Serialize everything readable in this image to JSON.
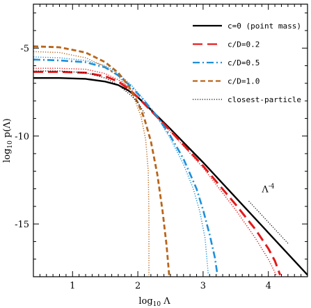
{
  "chart_data": {
    "type": "line",
    "title": "",
    "xlabel_prefix": "log",
    "xlabel_sub": "10",
    "xlabel_rest": " Λ",
    "ylabel_prefix": "log",
    "ylabel_sub": "10",
    "ylabel_rest": " p(Λ)",
    "xlim": [
      0.4,
      4.6
    ],
    "ylim": [
      -18,
      -2.5
    ],
    "x_ticks": [
      1,
      2,
      3,
      4
    ],
    "x_tick_labels": [
      "1",
      "2",
      "3",
      "4"
    ],
    "y_ticks": [
      -5,
      -10,
      -15
    ],
    "y_tick_labels": [
      "-5",
      "-10",
      "-15"
    ],
    "legend_position": "top-right",
    "series": [
      {
        "name": "c=0 (point mass)",
        "color": "#000000",
        "dash": "solid",
        "x": [
          0.4,
          0.8,
          1.2,
          1.5,
          1.7,
          1.85,
          2.0,
          2.2,
          2.5,
          3.0,
          3.5,
          4.0,
          4.6
        ],
        "y": [
          -6.7,
          -6.7,
          -6.75,
          -6.9,
          -7.1,
          -7.4,
          -7.8,
          -8.5,
          -9.6,
          -11.5,
          -13.5,
          -15.5,
          -17.9
        ]
      },
      {
        "name": "c/D=0.2",
        "color": "#e31a1c",
        "dash": "long-dash",
        "x": [
          0.4,
          0.8,
          1.2,
          1.5,
          1.7,
          1.85,
          2.0,
          2.2,
          2.5,
          3.0,
          3.5,
          3.8,
          4.0,
          4.1,
          4.18
        ],
        "y": [
          -6.35,
          -6.35,
          -6.4,
          -6.6,
          -6.9,
          -7.3,
          -7.8,
          -8.55,
          -9.7,
          -11.7,
          -13.9,
          -15.3,
          -16.4,
          -17.1,
          -17.9
        ]
      },
      {
        "name": "c/D=0.5",
        "color": "#1e90d8",
        "dash": "dash-dot",
        "x": [
          0.4,
          0.8,
          1.2,
          1.5,
          1.7,
          1.9,
          2.1,
          2.3,
          2.5,
          2.7,
          2.9,
          3.0,
          3.1,
          3.18,
          3.22
        ],
        "y": [
          -5.65,
          -5.7,
          -5.8,
          -6.1,
          -6.55,
          -7.2,
          -8.0,
          -8.9,
          -10.0,
          -11.3,
          -13.0,
          -14.2,
          -15.6,
          -16.9,
          -17.9
        ]
      },
      {
        "name": "c/D=1.0",
        "color": "#b8651b",
        "dash": "dash",
        "x": [
          0.4,
          0.8,
          1.2,
          1.5,
          1.7,
          1.85,
          2.0,
          2.1,
          2.2,
          2.3,
          2.38,
          2.44,
          2.48
        ],
        "y": [
          -4.9,
          -4.95,
          -5.25,
          -5.8,
          -6.4,
          -7.1,
          -8.1,
          -9.0,
          -10.3,
          -12.2,
          -14.3,
          -16.2,
          -17.9
        ]
      },
      {
        "name": "closest-particle",
        "color": "#000000",
        "dash": "dotted",
        "x": [
          0.4,
          0.8,
          1.2,
          1.5,
          1.7,
          1.9,
          2.0,
          2.1
        ],
        "y": [
          -6.3,
          -6.3,
          -6.4,
          -6.7,
          -7.1,
          -7.7,
          -8.1,
          -8.7
        ]
      }
    ],
    "extra_dotted_curves": [
      {
        "color": "#b8651b",
        "x": [
          0.4,
          0.8,
          1.2,
          1.5,
          1.7,
          1.85,
          1.95,
          2.05,
          2.12,
          2.16,
          2.17,
          2.17
        ],
        "y": [
          -5.2,
          -5.25,
          -5.55,
          -6.05,
          -6.6,
          -7.25,
          -7.9,
          -8.9,
          -10.2,
          -12.0,
          -14.5,
          -17.9
        ]
      },
      {
        "color": "#e31a1c",
        "x": [
          0.4,
          0.8,
          1.2,
          1.5,
          1.7,
          1.85,
          2.0,
          2.2,
          2.5,
          3.0,
          3.5,
          3.8,
          4.0,
          4.12
        ],
        "y": [
          -6.15,
          -6.15,
          -6.2,
          -6.45,
          -6.8,
          -7.2,
          -7.75,
          -8.55,
          -9.75,
          -11.8,
          -14.2,
          -15.8,
          -17.0,
          -17.9
        ]
      },
      {
        "color": "#1e90d8",
        "x": [
          0.4,
          0.8,
          1.2,
          1.5,
          1.7,
          1.9,
          2.1,
          2.3,
          2.5,
          2.7,
          2.85,
          2.95,
          3.03,
          3.08
        ],
        "y": [
          -5.5,
          -5.55,
          -5.7,
          -6.0,
          -6.45,
          -7.1,
          -7.95,
          -8.95,
          -10.15,
          -11.6,
          -13.0,
          -14.3,
          -15.8,
          -17.9
        ]
      }
    ],
    "slope_annotation": {
      "label": "Λ",
      "exponent": "-4",
      "line_x": [
        3.7,
        4.3
      ],
      "line_y": [
        -13.7,
        -16.1
      ],
      "label_x": 3.9,
      "label_y": -13.2
    }
  }
}
